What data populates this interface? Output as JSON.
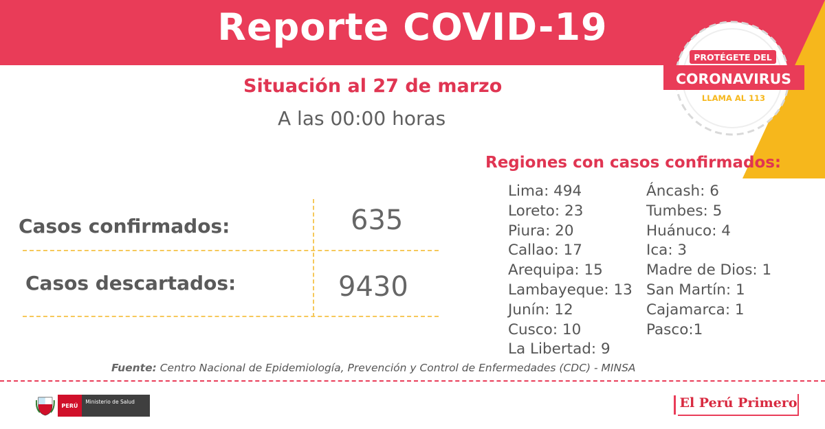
{
  "header": {
    "title": "Reporte COVID-19"
  },
  "badge": {
    "line1": "PROTÉGETE DEL",
    "line2": "CORONAVIRUS",
    "line3": "LLAMA AL 113"
  },
  "situacion": "Situación al 27 de marzo",
  "hora": "A las 00:00 horas",
  "stats": [
    {
      "label": "Casos confirmados:",
      "value": "635"
    },
    {
      "label": "Casos descartados:",
      "value": "9430"
    }
  ],
  "regiones": {
    "title": "Regiones con casos confirmados:",
    "col1": [
      "Lima: 494",
      "Loreto: 23",
      "Piura: 20",
      "Callao: 17",
      "Arequipa: 15",
      "Lambayeque: 13",
      "Junín: 12",
      "Cusco: 10",
      "La Libertad: 9"
    ],
    "col2": [
      "Áncash: 6",
      "Tumbes: 5",
      "Huánuco: 4",
      "Ica: 3",
      "Madre de Dios: 1",
      "San Martín: 1",
      "Cajamarca: 1",
      "Pasco:1"
    ]
  },
  "fuente": {
    "label": "Fuente:",
    "text": " Centro Nacional de Epidemiología, Prevención y Control de Enfermedades (CDC) - MINSA"
  },
  "footer": {
    "peru": "PERÚ",
    "ministerio": "Ministerio de Salud",
    "elperu": "El Perú Primero"
  },
  "colors": {
    "accent": "#e93c58",
    "yellow": "#f6b71c",
    "text": "#5a5a5a"
  }
}
